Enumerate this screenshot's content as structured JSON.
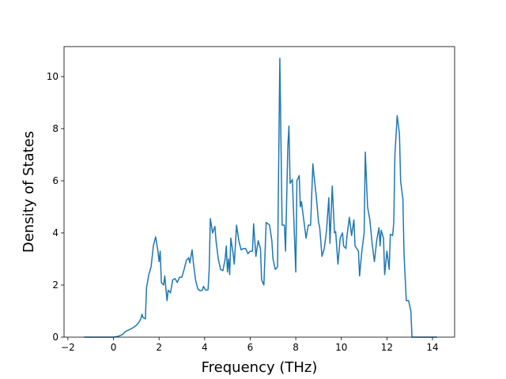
{
  "chart_data": {
    "type": "line",
    "xlabel": "Frequency (THz)",
    "ylabel": "Density of States",
    "color": "#1f77b4",
    "xlim": [
      -2.17,
      14.97
    ],
    "ylim": [
      0,
      11.15
    ],
    "xticks": [
      {
        "value": -2,
        "label": "−2"
      },
      0,
      2,
      4,
      6,
      8,
      10,
      12,
      14
    ],
    "yticks": [
      0,
      2,
      4,
      6,
      8,
      10
    ],
    "x": [
      -1.3,
      0.0,
      0.2,
      0.4,
      0.5,
      0.6,
      0.8,
      1.0,
      1.1,
      1.2,
      1.25,
      1.3,
      1.4,
      1.45,
      1.55,
      1.65,
      1.75,
      1.85,
      1.95,
      2.0,
      2.05,
      2.1,
      2.2,
      2.25,
      2.35,
      2.4,
      2.5,
      2.6,
      2.7,
      2.8,
      2.9,
      3.0,
      3.1,
      3.2,
      3.3,
      3.35,
      3.45,
      3.5,
      3.6,
      3.7,
      3.8,
      3.9,
      3.95,
      4.05,
      4.15,
      4.2,
      4.25,
      4.35,
      4.45,
      4.5,
      4.6,
      4.7,
      4.8,
      4.9,
      4.95,
      5.0,
      5.05,
      5.1,
      5.15,
      5.25,
      5.3,
      5.4,
      5.5,
      5.6,
      5.7,
      5.8,
      5.9,
      6.0,
      6.1,
      6.15,
      6.25,
      6.35,
      6.45,
      6.5,
      6.6,
      6.7,
      6.85,
      6.95,
      7.0,
      7.1,
      7.2,
      7.3,
      7.4,
      7.5,
      7.55,
      7.65,
      7.7,
      7.75,
      7.85,
      8.0,
      8.05,
      8.15,
      8.2,
      8.25,
      8.35,
      8.45,
      8.55,
      8.65,
      8.75,
      8.8,
      8.9,
      9.0,
      9.05,
      9.15,
      9.25,
      9.35,
      9.45,
      9.5,
      9.6,
      9.7,
      9.75,
      9.85,
      9.95,
      10.05,
      10.1,
      10.2,
      10.25,
      10.35,
      10.45,
      10.55,
      10.6,
      10.75,
      10.8,
      10.9,
      11.0,
      11.05,
      11.15,
      11.25,
      11.35,
      11.45,
      11.55,
      11.65,
      11.7,
      11.75,
      11.85,
      11.9,
      12.0,
      12.1,
      12.15,
      12.25,
      12.3,
      12.35,
      12.45,
      12.55,
      12.6,
      12.7,
      12.75,
      12.85,
      12.95,
      13.05,
      13.1,
      14.2
    ],
    "values": [
      0,
      0,
      0.03,
      0.1,
      0.2,
      0.25,
      0.33,
      0.45,
      0.55,
      0.7,
      0.88,
      0.75,
      0.7,
      1.9,
      2.4,
      2.7,
      3.5,
      3.85,
      3.3,
      2.9,
      3.3,
      2.1,
      2.0,
      2.35,
      1.4,
      1.8,
      1.7,
      2.2,
      2.25,
      2.1,
      2.3,
      2.3,
      2.6,
      2.95,
      3.05,
      2.85,
      3.35,
      2.9,
      2.2,
      1.85,
      1.78,
      1.8,
      1.95,
      1.8,
      1.82,
      2.6,
      4.55,
      4.0,
      4.25,
      3.7,
      3.0,
      2.6,
      2.55,
      3.0,
      3.5,
      2.5,
      3.0,
      2.4,
      3.8,
      3.2,
      2.8,
      4.3,
      3.7,
      3.35,
      3.4,
      3.4,
      3.2,
      3.3,
      3.3,
      4.35,
      3.1,
      3.7,
      3.4,
      2.2,
      2.0,
      4.4,
      4.3,
      3.7,
      3.0,
      2.6,
      2.7,
      10.7,
      4.3,
      4.3,
      3.3,
      7.3,
      8.1,
      5.9,
      6.05,
      2.5,
      6.0,
      6.2,
      5.0,
      5.2,
      4.5,
      3.8,
      4.3,
      4.3,
      6.65,
      6.2,
      5.4,
      4.4,
      4.2,
      3.1,
      3.4,
      4.1,
      5.35,
      3.6,
      5.8,
      4.0,
      4.05,
      2.8,
      3.8,
      4.0,
      3.5,
      3.4,
      3.9,
      4.6,
      3.9,
      4.5,
      3.5,
      3.3,
      2.35,
      3.3,
      4.0,
      7.1,
      5.0,
      4.5,
      3.6,
      2.9,
      3.7,
      4.2,
      3.5,
      4.1,
      3.8,
      2.4,
      3.3,
      2.6,
      3.95,
      3.9,
      4.4,
      7.0,
      8.5,
      7.8,
      6.0,
      5.3,
      3.2,
      1.4,
      1.4,
      1.0,
      0,
      0
    ]
  }
}
